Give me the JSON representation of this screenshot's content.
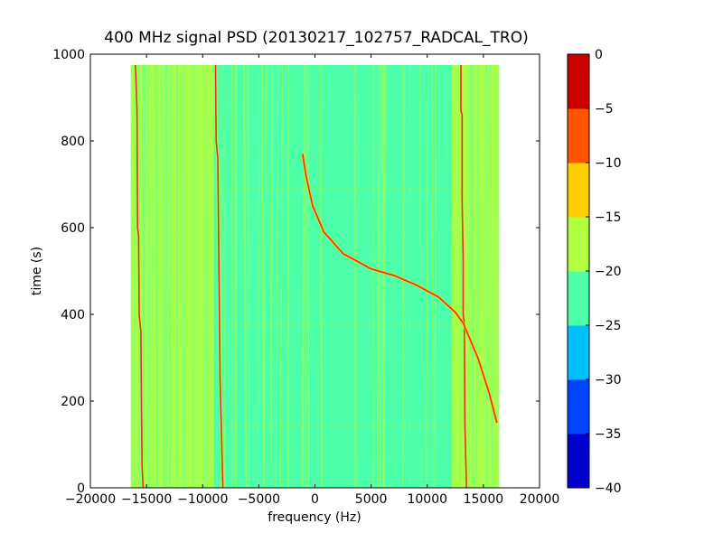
{
  "chart_data": {
    "type": "heatmap",
    "title": "400 MHz signal PSD (20130217_102757_RADCAL_TRO)",
    "xlabel": "frequency (Hz)",
    "ylabel": "time (s)",
    "xlim": [
      -20000,
      20000
    ],
    "ylim": [
      0,
      1000
    ],
    "x_ticks": [
      "−20000",
      "−15000",
      "−10000",
      "−5000",
      "0",
      "5000",
      "10000",
      "15000",
      "20000"
    ],
    "x_tick_values": [
      -20000,
      -15000,
      -10000,
      -5000,
      0,
      5000,
      10000,
      15000,
      20000
    ],
    "y_ticks": [
      "0",
      "200",
      "400",
      "600",
      "800",
      "1000"
    ],
    "y_tick_values": [
      0,
      200,
      400,
      600,
      800,
      1000
    ],
    "data_extent": {
      "freq": [
        -16400,
        16400
      ],
      "time": [
        0,
        975
      ]
    },
    "colorbar": {
      "range": [
        -40,
        0
      ],
      "levels": [
        -40,
        -35,
        -30,
        -25,
        -20,
        -15,
        -10,
        -5,
        0
      ],
      "tick_labels": [
        "−40",
        "−35",
        "−30",
        "−25",
        "−20",
        "−15",
        "−10",
        "−5",
        "0"
      ],
      "colors": [
        "#0000cc",
        "#0044ff",
        "#00c0ff",
        "#4dffa8",
        "#b0ff40",
        "#ffd000",
        "#ff5500",
        "#cc0000"
      ]
    },
    "background_level_color": "#4dffa8",
    "outer_band_color": "#b0ff40",
    "carrier_lines": [
      {
        "name": "",
        "color": "#e83020",
        "points": [
          [
            -16000,
            975
          ],
          [
            -15950,
            950
          ],
          [
            -15850,
            870
          ],
          [
            -15800,
            600
          ],
          [
            -15700,
            580
          ],
          [
            -15650,
            400
          ],
          [
            -15500,
            360
          ],
          [
            -15450,
            200
          ],
          [
            -15400,
            50
          ],
          [
            -15300,
            0
          ]
        ]
      },
      {
        "name": "",
        "color": "#e83020",
        "points": [
          [
            -8850,
            975
          ],
          [
            -8800,
            800
          ],
          [
            -8650,
            760
          ],
          [
            -8550,
            500
          ],
          [
            -8450,
            250
          ],
          [
            -8300,
            100
          ],
          [
            -8200,
            0
          ]
        ]
      },
      {
        "name": "",
        "color": "#e83020",
        "points": [
          [
            13000,
            975
          ],
          [
            13000,
            870
          ],
          [
            13100,
            860
          ],
          [
            13100,
            660
          ],
          [
            13200,
            530
          ],
          [
            13200,
            400
          ],
          [
            13300,
            380
          ],
          [
            13350,
            150
          ],
          [
            13500,
            0
          ]
        ]
      }
    ],
    "doppler_trace": {
      "color": "#e83020",
      "points": [
        [
          -1100,
          770
        ],
        [
          -800,
          720
        ],
        [
          -200,
          650
        ],
        [
          800,
          590
        ],
        [
          2500,
          540
        ],
        [
          5000,
          505
        ],
        [
          7000,
          490
        ],
        [
          9000,
          468
        ],
        [
          11000,
          440
        ],
        [
          12500,
          405
        ],
        [
          13200,
          380
        ],
        [
          14500,
          300
        ],
        [
          15500,
          220
        ],
        [
          16200,
          150
        ]
      ]
    }
  }
}
